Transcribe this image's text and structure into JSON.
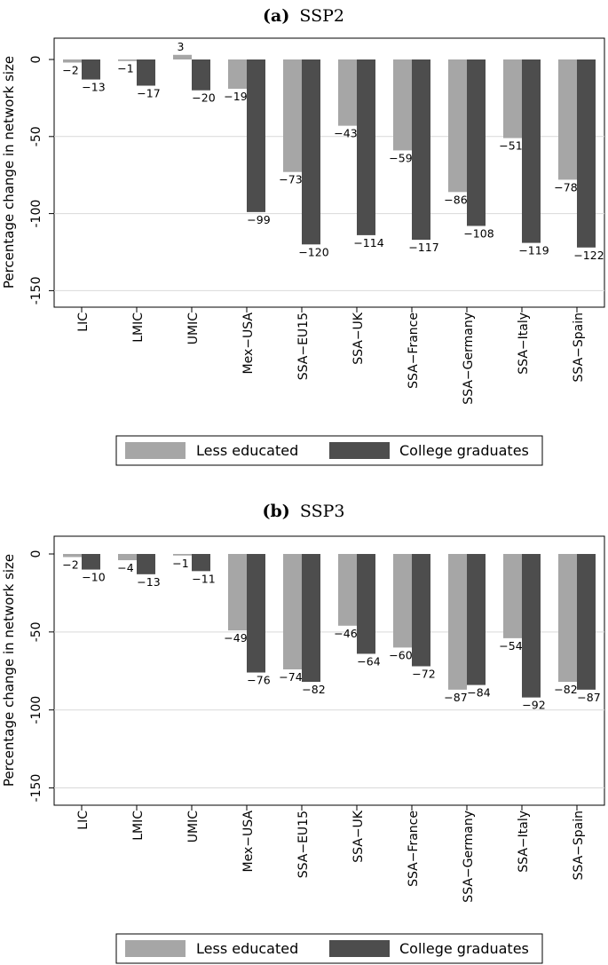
{
  "chart_data": [
    {
      "type": "bar",
      "panel_letter": "(a)",
      "title": "SSP2",
      "ylabel": "Percentage change in network size",
      "xlabel": "",
      "ylim": [
        -160,
        10
      ],
      "yticks": [
        0,
        -50,
        -100,
        -150
      ],
      "ytick_labels": [
        "0",
        "-50",
        "-100",
        "-150"
      ],
      "grid": true,
      "categories": [
        "LIC",
        "LMIC",
        "UMIC",
        "Mex−USA",
        "SSA−EU15",
        "SSA−UK",
        "SSA−France",
        "SSA−Germany",
        "SSA−Italy",
        "SSA−Spain"
      ],
      "series": [
        {
          "name": "Less educated",
          "color": "#a6a6a6",
          "values": [
            -2,
            -1,
            3,
            -19,
            -73,
            -43,
            -59,
            -86,
            -51,
            -78
          ],
          "labels": [
            "−2",
            "−1",
            "3",
            "−19",
            "−73",
            "−43",
            "−59",
            "−86",
            "−51",
            "−78"
          ]
        },
        {
          "name": "College graduates",
          "color": "#4d4d4d",
          "values": [
            -13,
            -17,
            -20,
            -99,
            -120,
            -114,
            -117,
            -108,
            -119,
            -122
          ],
          "labels": [
            "−13",
            "−17",
            "−20",
            "−99",
            "−120",
            "−114",
            "−117",
            "−108",
            "−119",
            "−122"
          ]
        }
      ],
      "legend": {
        "position": "bottom",
        "entries": [
          "Less educated",
          "College graduates"
        ]
      }
    },
    {
      "type": "bar",
      "panel_letter": "(b)",
      "title": "SSP3",
      "ylabel": "Percentage change in network size",
      "xlabel": "",
      "ylim": [
        -160,
        5
      ],
      "yticks": [
        0,
        -50,
        -100,
        -150
      ],
      "ytick_labels": [
        "0",
        "-50",
        "-100",
        "-150"
      ],
      "grid": true,
      "categories": [
        "LIC",
        "LMIC",
        "UMIC",
        "Mex−USA",
        "SSA−EU15",
        "SSA−UK",
        "SSA−France",
        "SSA−Germany",
        "SSA−Italy",
        "SSA−Spain"
      ],
      "series": [
        {
          "name": "Less educated",
          "color": "#a6a6a6",
          "values": [
            -2,
            -4,
            -1,
            -49,
            -74,
            -46,
            -60,
            -87,
            -54,
            -82
          ],
          "labels": [
            "−2",
            "−4",
            "−1",
            "−49",
            "−74",
            "−46",
            "−60",
            "−87",
            "−54",
            "−82"
          ]
        },
        {
          "name": "College graduates",
          "color": "#4d4d4d",
          "values": [
            -10,
            -13,
            -11,
            -76,
            -82,
            -64,
            -72,
            -84,
            -92,
            -87
          ],
          "labels": [
            "−10",
            "−13",
            "−11",
            "−76",
            "−82",
            "−64",
            "−72",
            "−84",
            "−92",
            "−87"
          ]
        }
      ],
      "legend": {
        "position": "bottom",
        "entries": [
          "Less educated",
          "College graduates"
        ]
      }
    }
  ]
}
